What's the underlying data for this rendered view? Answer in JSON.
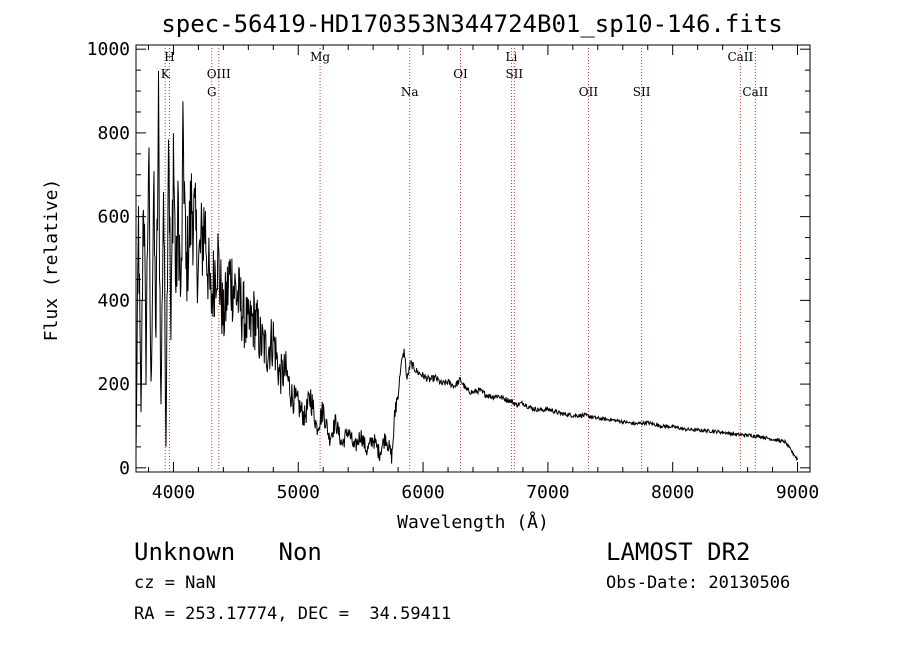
{
  "chart_data": {
    "type": "line",
    "title": "spec-56419-HD170353N344724B01_sp10-146.fits",
    "xlabel": "Wavelength (Å)",
    "ylabel": "Flux (relative)",
    "xlim": [
      3700,
      9100
    ],
    "ylim": [
      -10,
      1010
    ],
    "xticks": [
      4000,
      5000,
      6000,
      7000,
      8000,
      9000
    ],
    "yticks": [
      0,
      200,
      400,
      600,
      800,
      1000
    ],
    "grid": false,
    "series": [
      {
        "x": [
          3700,
          3720,
          3740,
          3760,
          3780,
          3800,
          3820,
          3840,
          3860,
          3880,
          3900,
          3920,
          3940,
          3960,
          3980,
          4000,
          4020,
          4040,
          4060,
          4080,
          4100,
          4150,
          4200,
          4250,
          4300,
          4350,
          4400,
          4450,
          4500,
          4550,
          4600,
          4650,
          4700,
          4750,
          4800,
          4850,
          4900,
          4950,
          5000,
          5050,
          5100,
          5150,
          5200,
          5250,
          5300,
          5350,
          5400,
          5450,
          5500,
          5550,
          5600,
          5650,
          5700,
          5750,
          5780,
          5800,
          5820,
          5850,
          5870,
          5900,
          5950,
          6000,
          6050,
          6100,
          6150,
          6200,
          6250,
          6300,
          6350,
          6400,
          6450,
          6500,
          6550,
          6600,
          6650,
          6700,
          6750,
          6800,
          6850,
          6900,
          6950,
          7000,
          7100,
          7200,
          7300,
          7400,
          7500,
          7600,
          7700,
          7800,
          7900,
          8000,
          8100,
          8200,
          8300,
          8400,
          8500,
          8600,
          8700,
          8800,
          8900,
          9000
        ],
        "y": [
          30,
          580,
          120,
          700,
          240,
          760,
          180,
          650,
          320,
          820,
          140,
          690,
          60,
          870,
          300,
          780,
          420,
          620,
          380,
          800,
          460,
          640,
          480,
          590,
          390,
          520,
          350,
          460,
          420,
          380,
          330,
          360,
          300,
          280,
          310,
          220,
          230,
          170,
          150,
          120,
          170,
          95,
          140,
          70,
          110,
          55,
          90,
          45,
          80,
          40,
          70,
          35,
          75,
          25,
          150,
          170,
          240,
          280,
          210,
          250,
          230,
          220,
          210,
          215,
          200,
          205,
          195,
          210,
          185,
          180,
          185,
          175,
          170,
          172,
          165,
          160,
          150,
          155,
          145,
          140,
          138,
          140,
          130,
          125,
          125,
          118,
          115,
          110,
          105,
          108,
          100,
          98,
          92,
          90,
          88,
          85,
          80,
          78,
          75,
          68,
          62,
          20
        ]
      }
    ],
    "annotations": [
      "H",
      "K",
      "OIII",
      "G",
      "Mg",
      "Na",
      "OI",
      "Li",
      "SII",
      "OII",
      "SII",
      "CaII",
      "CaII"
    ]
  },
  "info": {
    "object": "Unknown   Non",
    "survey": "LAMOST DR2",
    "cz": "cz = NaN",
    "obs_date": "Obs-Date: 20130506",
    "coords": "RA = 253.17774, DEC =  34.59411"
  }
}
